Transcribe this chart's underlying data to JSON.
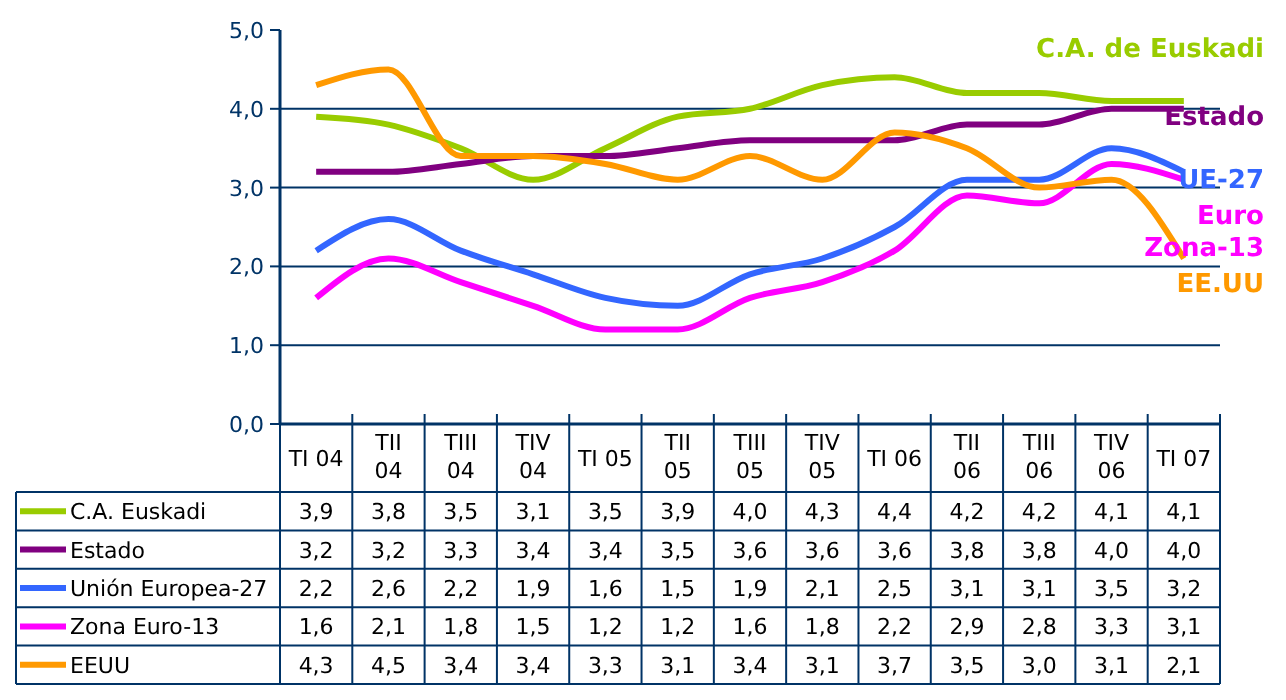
{
  "chart_data": {
    "type": "line",
    "categories": [
      "TI 04",
      "TII 04",
      "TIII 04",
      "TIV 04",
      "TI 05",
      "TII 05",
      "TIII 05",
      "TIV 05",
      "TI 06",
      "TII 06",
      "TIII 06",
      "TIV 06",
      "TI 07"
    ],
    "series": [
      {
        "name": "C.A. Euskadi",
        "color": "#99cc00",
        "values": [
          3.9,
          3.8,
          3.5,
          3.1,
          3.5,
          3.9,
          4.0,
          4.3,
          4.4,
          4.2,
          4.2,
          4.1,
          4.1
        ],
        "value_labels": [
          "3,9",
          "3,8",
          "3,5",
          "3,1",
          "3,5",
          "3,9",
          "4,0",
          "4,3",
          "4,4",
          "4,2",
          "4,2",
          "4,1",
          "4,1"
        ]
      },
      {
        "name": "Estado",
        "color": "#800080",
        "values": [
          3.2,
          3.2,
          3.3,
          3.4,
          3.4,
          3.5,
          3.6,
          3.6,
          3.6,
          3.8,
          3.8,
          4.0,
          4.0
        ],
        "value_labels": [
          "3,2",
          "3,2",
          "3,3",
          "3,4",
          "3,4",
          "3,5",
          "3,6",
          "3,6",
          "3,6",
          "3,8",
          "3,8",
          "4,0",
          "4,0"
        ]
      },
      {
        "name": "Unión Europea-27",
        "color": "#3366ff",
        "values": [
          2.2,
          2.6,
          2.2,
          1.9,
          1.6,
          1.5,
          1.9,
          2.1,
          2.5,
          3.1,
          3.1,
          3.5,
          3.2
        ],
        "value_labels": [
          "2,2",
          "2,6",
          "2,2",
          "1,9",
          "1,6",
          "1,5",
          "1,9",
          "2,1",
          "2,5",
          "3,1",
          "3,1",
          "3,5",
          "3,2"
        ]
      },
      {
        "name": "Zona Euro-13",
        "color": "#ff00ff",
        "values": [
          1.6,
          2.1,
          1.8,
          1.5,
          1.2,
          1.2,
          1.6,
          1.8,
          2.2,
          2.9,
          2.8,
          3.3,
          3.1
        ],
        "value_labels": [
          "1,6",
          "2,1",
          "1,8",
          "1,5",
          "1,2",
          "1,2",
          "1,6",
          "1,8",
          "2,2",
          "2,9",
          "2,8",
          "3,3",
          "3,1"
        ]
      },
      {
        "name": "EEUU",
        "color": "#ff9900",
        "values": [
          4.3,
          4.5,
          3.4,
          3.4,
          3.3,
          3.1,
          3.4,
          3.1,
          3.7,
          3.5,
          3.0,
          3.1,
          2.1
        ],
        "value_labels": [
          "4,3",
          "4,5",
          "3,4",
          "3,4",
          "3,3",
          "3,1",
          "3,4",
          "3,1",
          "3,7",
          "3,5",
          "3,0",
          "3,1",
          "2,1"
        ]
      }
    ],
    "annotations": [
      "C.A. de Euskadi",
      "Estado",
      "UE-27",
      "Euro\nZona-13",
      "EE.UU"
    ],
    "ylim": [
      0,
      5
    ],
    "yticks": [
      {
        "value": 0,
        "label": "0,0"
      },
      {
        "value": 1,
        "label": "1,0"
      },
      {
        "value": 2,
        "label": "2,0"
      },
      {
        "value": 3,
        "label": "3,0"
      },
      {
        "value": 4,
        "label": "4,0"
      },
      {
        "value": 5,
        "label": "5,0"
      }
    ],
    "grid": "y",
    "legend": "bottom",
    "marker": "none",
    "line_style": "solid"
  }
}
